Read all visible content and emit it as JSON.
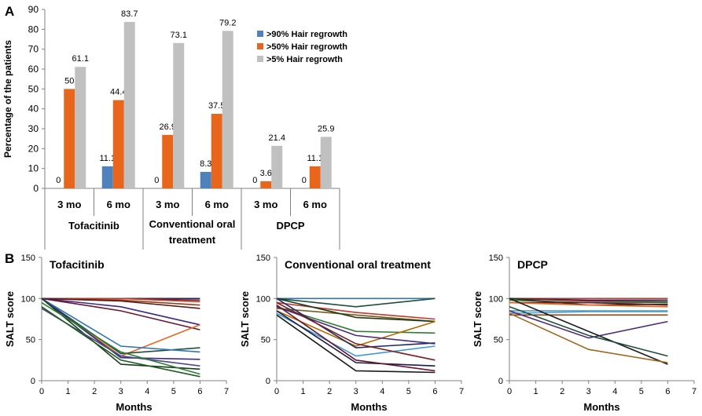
{
  "panel_labels": {
    "a": "A",
    "b": "B"
  },
  "colors": {
    "gt90": "#4f81bd",
    "gt50": "#e8661c",
    "gt5": "#c0c0c0",
    "axis": "#808080",
    "text": "#000000"
  },
  "chart_data": [
    {
      "type": "bar",
      "panel": "A",
      "ylabel": "Percentage of the patients",
      "ylim": [
        0,
        90
      ],
      "yticks": [
        0,
        10,
        20,
        30,
        40,
        50,
        60,
        70,
        80,
        90
      ],
      "categories": [
        "3 mo",
        "6 mo",
        "3 mo",
        "6 mo",
        "3 mo",
        "6 mo"
      ],
      "groups": [
        {
          "label_lines": [
            "Tofacitinib"
          ]
        },
        {
          "label_lines": [
            "Conventional oral",
            "treatment"
          ]
        },
        {
          "label_lines": [
            "DPCP"
          ]
        }
      ],
      "series": [
        {
          "name": ">90% Hair regrowth",
          "color_key": "gt90",
          "values": [
            0,
            11.1,
            0,
            8.3,
            0,
            0
          ],
          "labels": [
            "0",
            "11.1",
            "0",
            "8.3",
            "0",
            "0"
          ]
        },
        {
          "name": ">50% Hair regrowth",
          "color_key": "gt50",
          "values": [
            50,
            44.4,
            26.9,
            37.5,
            3.6,
            11.1
          ],
          "labels": [
            "50",
            "44.4",
            "26.9",
            "37.5",
            "3.6",
            "11.1"
          ]
        },
        {
          "name": ">5% Hair regrowth",
          "color_key": "gt5",
          "values": [
            61.1,
            83.7,
            73.1,
            79.2,
            21.4,
            25.9
          ],
          "labels": [
            "61.1",
            "83.7",
            "73.1",
            "79.2",
            "21.4",
            "25.9"
          ]
        }
      ],
      "legend": "right"
    },
    {
      "type": "line",
      "panel": "B",
      "title": "Tofacitinib",
      "xlabel": "Months",
      "ylabel": "SALT score",
      "xlim": [
        0,
        7
      ],
      "ylim": [
        0,
        150
      ],
      "xticks": [
        0,
        1,
        2,
        3,
        4,
        5,
        6,
        7
      ],
      "yticks": [
        0,
        50,
        100,
        150
      ],
      "x": [
        0,
        3,
        6
      ],
      "series": [
        {
          "color": "#1f2a6b",
          "values": [
            100,
            100,
            100
          ]
        },
        {
          "color": "#7a1f1f",
          "values": [
            100,
            100,
            98
          ]
        },
        {
          "color": "#c0392b",
          "values": [
            100,
            100,
            96
          ]
        },
        {
          "color": "#8b4513",
          "values": [
            100,
            98,
            92
          ]
        },
        {
          "color": "#5a1a1a",
          "values": [
            100,
            97,
            88
          ]
        },
        {
          "color": "#3b2a80",
          "values": [
            100,
            90,
            68
          ]
        },
        {
          "color": "#6a1530",
          "values": [
            100,
            85,
            62
          ]
        },
        {
          "color": "#e8661c",
          "values": [
            100,
            30,
            68
          ]
        },
        {
          "color": "#1f4e3d",
          "values": [
            100,
            33,
            40
          ]
        },
        {
          "color": "#2e75b6",
          "values": [
            100,
            42,
            35
          ]
        },
        {
          "color": "#3b2a80",
          "values": [
            100,
            28,
            26
          ]
        },
        {
          "color": "#1d3b1d",
          "values": [
            100,
            20,
            14
          ]
        },
        {
          "color": "#4a4a8a",
          "values": [
            88,
            30,
            18
          ]
        },
        {
          "color": "#2e7d32",
          "values": [
            95,
            35,
            8
          ]
        },
        {
          "color": "#1b5e20",
          "values": [
            90,
            25,
            5
          ]
        }
      ]
    },
    {
      "type": "line",
      "panel": "B",
      "title": "Conventional oral treatment",
      "xlabel": "Months",
      "ylabel": "SALT score",
      "xlim": [
        0,
        7
      ],
      "ylim": [
        0,
        150
      ],
      "xticks": [
        0,
        1,
        2,
        3,
        4,
        5,
        6,
        7
      ],
      "yticks": [
        0,
        50,
        100,
        150
      ],
      "x": [
        0,
        3,
        6
      ],
      "series": [
        {
          "color": "#2e75b6",
          "values": [
            100,
            100,
            100
          ]
        },
        {
          "color": "#1f4e3d",
          "values": [
            100,
            90,
            100
          ]
        },
        {
          "color": "#c0392b",
          "values": [
            95,
            83,
            75
          ]
        },
        {
          "color": "#7a5a1a",
          "values": [
            88,
            80,
            72
          ]
        },
        {
          "color": "#1d3b1d",
          "values": [
            100,
            77,
            72
          ]
        },
        {
          "color": "#2e7d32",
          "values": [
            90,
            60,
            58
          ]
        },
        {
          "color": "#b36b00",
          "values": [
            85,
            42,
            72
          ]
        },
        {
          "color": "#4b2a7a",
          "values": [
            90,
            55,
            45
          ]
        },
        {
          "color": "#1f2a6b",
          "values": [
            100,
            40,
            46
          ]
        },
        {
          "color": "#3a9ad9",
          "values": [
            82,
            30,
            42
          ]
        },
        {
          "color": "#7a1f1f",
          "values": [
            95,
            45,
            25
          ]
        },
        {
          "color": "#1a1a4a",
          "values": [
            85,
            22,
            18
          ]
        },
        {
          "color": "#6a1530",
          "values": [
            92,
            25,
            12
          ]
        },
        {
          "color": "#1b1b1b",
          "values": [
            80,
            12,
            10
          ]
        }
      ]
    },
    {
      "type": "line",
      "panel": "B",
      "title": "DPCP",
      "xlabel": "Months",
      "ylabel": "SALT score",
      "xlim": [
        0,
        7
      ],
      "ylim": [
        0,
        150
      ],
      "xticks": [
        0,
        1,
        2,
        3,
        4,
        5,
        6,
        7
      ],
      "yticks": [
        0,
        50,
        100,
        150
      ],
      "x": [
        0,
        3,
        6
      ],
      "series": [
        {
          "color": "#c0392b",
          "values": [
            100,
            100,
            100
          ]
        },
        {
          "color": "#1f2a6b",
          "values": [
            100,
            98,
            98
          ]
        },
        {
          "color": "#7a1f1f",
          "values": [
            100,
            97,
            96
          ]
        },
        {
          "color": "#2e7d32",
          "values": [
            98,
            95,
            95
          ]
        },
        {
          "color": "#1d3b1d",
          "values": [
            100,
            92,
            93
          ]
        },
        {
          "color": "#6a1530",
          "values": [
            95,
            95,
            92
          ]
        },
        {
          "color": "#e8661c",
          "values": [
            95,
            92,
            90
          ]
        },
        {
          "color": "#3a9ad9",
          "values": [
            85,
            85,
            85
          ]
        },
        {
          "color": "#5aa0c8",
          "values": [
            82,
            84,
            84
          ]
        },
        {
          "color": "#8b4513",
          "values": [
            80,
            80,
            80
          ]
        },
        {
          "color": "#4b2a7a",
          "values": [
            85,
            52,
            72
          ]
        },
        {
          "color": "#1b1b1b",
          "values": [
            100,
            60,
            20
          ]
        },
        {
          "color": "#1f4e3d",
          "values": [
            90,
            55,
            30
          ]
        },
        {
          "color": "#a0661c",
          "values": [
            82,
            38,
            22
          ]
        }
      ]
    }
  ]
}
